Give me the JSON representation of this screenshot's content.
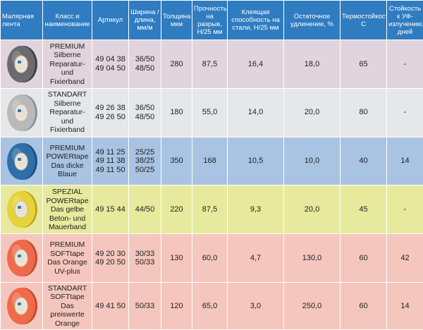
{
  "headers": {
    "tape": "Малярная лента",
    "class": "Класс и наименование",
    "article": "Артикул",
    "width": "Ширина /длина, мм/м",
    "thickness": "Толщина мкм",
    "tensile": "Прочность на разрыв, Н/25 мм",
    "adhesion": "Клеящая способность на стали, Н/25 мм",
    "elongation": "Остаточное удлинение, %",
    "heat": "Термостойкость С",
    "uv": "Стойкость к УФ-излучению, дней"
  },
  "rows": [
    {
      "bg": "#e2d4dd",
      "tape_color": "#6a6b6e",
      "tape_edge": "#3d3e40",
      "tape_name": "gray-dark-tape-roll-icon",
      "name": [
        "PREMIUM",
        "Silberne",
        "Reparatur-",
        "und",
        "Fixierband"
      ],
      "article": [
        "49 04 38",
        "49 04 50"
      ],
      "width": [
        "36/50",
        "48/50"
      ],
      "thickness": "280",
      "tensile": "87,5",
      "adhesion": "16,4",
      "elongation": "18,0",
      "heat": "65",
      "uv": "-"
    },
    {
      "bg": "#e6e7e8",
      "tape_color": "#b7b9bb",
      "tape_edge": "#8d8f92",
      "tape_name": "silver-tape-roll-icon",
      "name": [
        "STANDART",
        "Silberne",
        "Reparatur-",
        "und",
        "Fixierband"
      ],
      "article": [
        "49 26 38",
        "49 26 50"
      ],
      "width": [
        "36/50",
        "48/50"
      ],
      "thickness": "180",
      "tensile": "55,0",
      "adhesion": "14,0",
      "elongation": "20,0",
      "heat": "80",
      "uv": "-"
    },
    {
      "bg": "#a9c3e2",
      "tape_color": "#2f6fa8",
      "tape_edge": "#1e4f7e",
      "tape_name": "blue-tape-roll-icon",
      "name": [
        "PREMIUM",
        "POWERtape",
        "Das dicke",
        "Blaue"
      ],
      "article": [
        "49 11 25",
        "49 11 38",
        "49 11 50"
      ],
      "width": [
        "25/25",
        "38/25",
        "50/25"
      ],
      "thickness": "350",
      "tensile": "168",
      "adhesion": "10,5",
      "elongation": "10,0",
      "heat": "40",
      "uv": "14"
    },
    {
      "bg": "#e7ea9c",
      "tape_color": "#e6d33a",
      "tape_edge": "#b9a61e",
      "tape_name": "yellow-tape-roll-icon",
      "name": [
        "SPEZIAL",
        "POWERtape",
        "Das gelbe",
        "Beton- und",
        "Mauerband"
      ],
      "article": [
        "49 15 44"
      ],
      "width": [
        "44/50"
      ],
      "thickness": "220",
      "tensile": "87,5",
      "adhesion": "9,3",
      "elongation": "20,0",
      "heat": "45",
      "uv": "-"
    },
    {
      "bg": "#f5c6bd",
      "tape_color": "#ef6a4c",
      "tape_edge": "#c44a30",
      "tape_name": "orange-tape-roll-icon",
      "name": [
        "PREMIUM",
        "SOFTtape",
        "Das Orange",
        "UV-plus"
      ],
      "article": [
        "49 20 30",
        "49 20 50"
      ],
      "width": [
        "30/33",
        "50/33"
      ],
      "thickness": "130",
      "tensile": "60,0",
      "adhesion": "4,7",
      "elongation": "130,0",
      "heat": "60",
      "uv": "42"
    },
    {
      "bg": "#f5c6bd",
      "tape_color": "#f06a4a",
      "tape_edge": "#c8472d",
      "tape_name": "orange-red-tape-roll-icon",
      "name": [
        "STANDART",
        "SOFTtape",
        "Das",
        "preiswerte",
        "Orange"
      ],
      "article": [
        "49 41 50"
      ],
      "width": [
        "50/33"
      ],
      "thickness": "120",
      "tensile": "65,0",
      "adhesion": "3,0",
      "elongation": "250,0",
      "heat": "60",
      "uv": "14"
    }
  ]
}
